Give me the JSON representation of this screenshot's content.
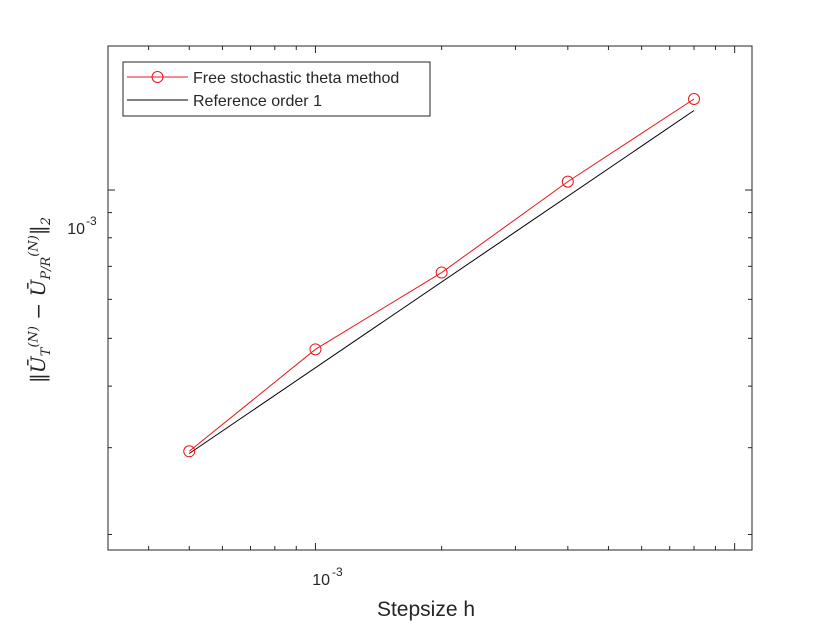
{
  "chart_data": {
    "type": "line",
    "xscale": "log",
    "yscale": "log",
    "xlabel": "Stepsize h",
    "ylabel": "||Ū_T^(N) − Ū_{P/R}^(N)||_2",
    "xlim": [
      0.00032,
      0.011
    ],
    "ylim": [
      0.000186,
      0.00196
    ],
    "x_tick_label": {
      "base": "10",
      "exponent": "-3"
    },
    "y_tick_label": {
      "base": "10",
      "exponent": "-3"
    },
    "legend_position": "top-left",
    "grid": false,
    "series": [
      {
        "name": "Free stochastic theta method",
        "color": "#e8171b",
        "marker": "circle",
        "x": [
          0.0005,
          0.001,
          0.002,
          0.004,
          0.008
        ],
        "y": [
          0.000295,
          0.000475,
          0.00068,
          0.00104,
          0.00153
        ]
      },
      {
        "name": "Reference order 1",
        "color": "#000000",
        "marker": "none",
        "x": [
          0.0005,
          0.008
        ],
        "y": [
          0.000292,
          0.00145
        ]
      }
    ]
  }
}
